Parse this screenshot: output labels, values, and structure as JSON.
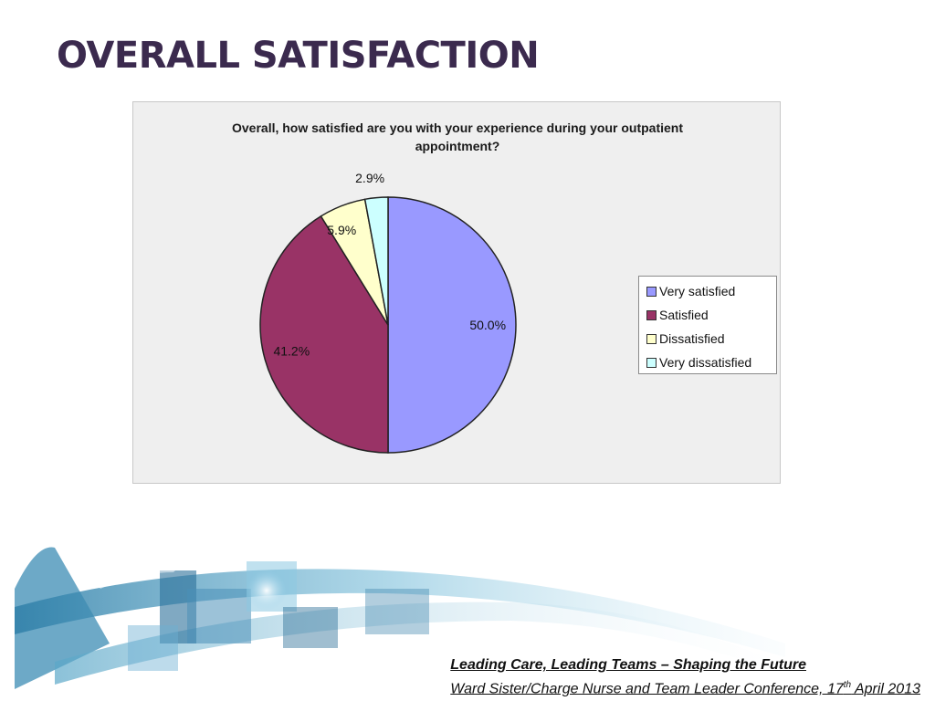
{
  "slide": {
    "title": "OVERALL SATISFACTION"
  },
  "chart_data": {
    "type": "pie",
    "title_line1": "Overall, how satisfied are you with your experience during your outpatient",
    "title_line2": "appointment?",
    "categories": [
      "Very satisfied",
      "Satisfied",
      "Dissatisfied",
      "Very dissatisfied"
    ],
    "values": [
      50.0,
      41.2,
      5.9,
      2.9
    ],
    "labels": [
      "50.0%",
      "41.2%",
      "5.9%",
      "2.9%"
    ],
    "colors": [
      "#9999ff",
      "#993366",
      "#ffffcc",
      "#ccffff"
    ],
    "legend_position": "right",
    "start_angle": "12 o'clock, clockwise"
  },
  "footer": {
    "line1": "Leading Care, Leading Teams – Shaping the Future",
    "line2_prefix": "Ward Sister/Charge Nurse and Team Leader Conference, 17",
    "line2_sup": "th",
    "line2_suffix": " April 2013"
  }
}
